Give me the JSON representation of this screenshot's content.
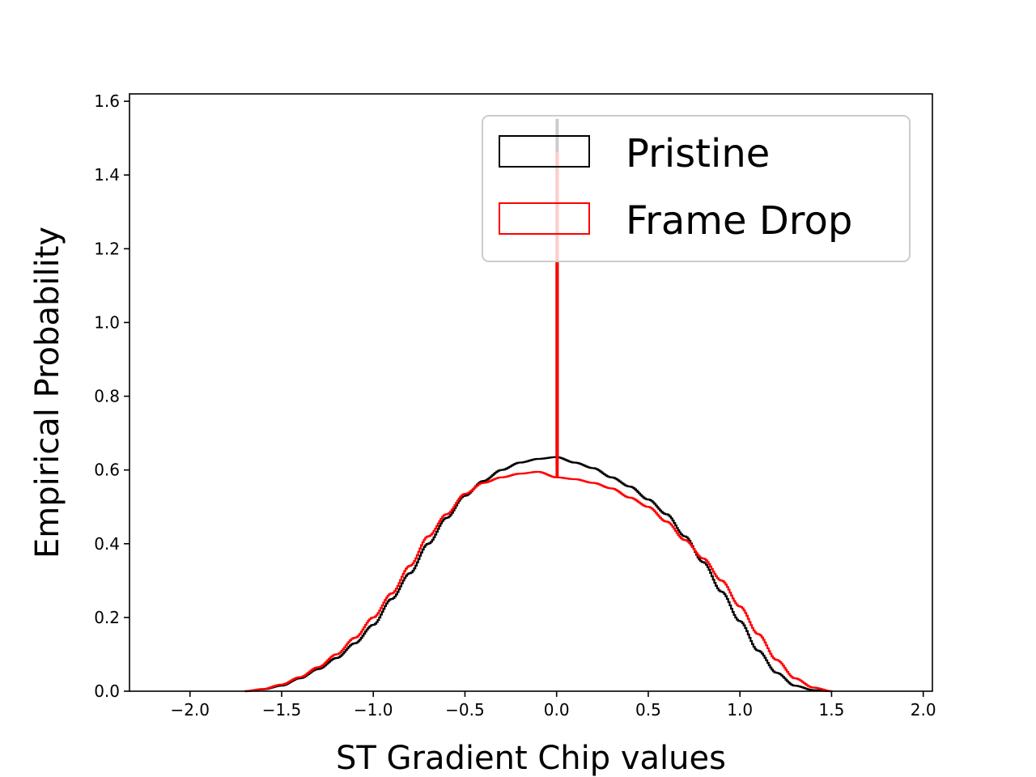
{
  "chart_data": {
    "type": "area",
    "title": "",
    "xlabel": "ST Gradient Chip values",
    "ylabel": "Empirical Probability",
    "xlim": [
      -2.33,
      2.05
    ],
    "ylim": [
      0,
      1.62
    ],
    "xticks": [
      -2.0,
      -1.5,
      -1.0,
      -0.5,
      0.0,
      0.5,
      1.0,
      1.5,
      2.0
    ],
    "xtick_labels": [
      "−2.0",
      "−1.5",
      "−1.0",
      "−0.5",
      "0.0",
      "0.5",
      "1.0",
      "1.5",
      "2.0"
    ],
    "yticks": [
      0.0,
      0.2,
      0.4,
      0.6,
      0.8,
      1.0,
      1.2,
      1.4,
      1.6
    ],
    "ytick_labels": [
      "0.0",
      "0.2",
      "0.4",
      "0.6",
      "0.8",
      "1.0",
      "1.2",
      "1.4",
      "1.6"
    ],
    "grid": false,
    "legend_position": "top-right",
    "series": [
      {
        "name": "Pristine",
        "color": "#000000",
        "style": "step",
        "points": [
          [
            -1.7,
            0.0
          ],
          [
            -1.6,
            0.005
          ],
          [
            -1.5,
            0.015
          ],
          [
            -1.4,
            0.035
          ],
          [
            -1.3,
            0.06
          ],
          [
            -1.2,
            0.09
          ],
          [
            -1.1,
            0.13
          ],
          [
            -1.0,
            0.18
          ],
          [
            -0.9,
            0.25
          ],
          [
            -0.8,
            0.32
          ],
          [
            -0.7,
            0.4
          ],
          [
            -0.6,
            0.47
          ],
          [
            -0.5,
            0.53
          ],
          [
            -0.4,
            0.57
          ],
          [
            -0.3,
            0.6
          ],
          [
            -0.2,
            0.62
          ],
          [
            -0.1,
            0.63
          ],
          [
            0.0,
            0.635
          ],
          [
            0.1,
            0.62
          ],
          [
            0.2,
            0.605
          ],
          [
            0.3,
            0.58
          ],
          [
            0.4,
            0.555
          ],
          [
            0.5,
            0.52
          ],
          [
            0.6,
            0.48
          ],
          [
            0.7,
            0.42
          ],
          [
            0.8,
            0.35
          ],
          [
            0.9,
            0.27
          ],
          [
            1.0,
            0.19
          ],
          [
            1.1,
            0.11
          ],
          [
            1.2,
            0.05
          ],
          [
            1.3,
            0.015
          ],
          [
            1.4,
            0.003
          ],
          [
            1.5,
            0.0
          ]
        ],
        "spike": {
          "x": 0.0,
          "y": 1.55
        }
      },
      {
        "name": "Frame Drop",
        "color": "#ff0000",
        "style": "step",
        "points": [
          [
            -1.7,
            0.0
          ],
          [
            -1.6,
            0.006
          ],
          [
            -1.5,
            0.018
          ],
          [
            -1.4,
            0.038
          ],
          [
            -1.3,
            0.065
          ],
          [
            -1.2,
            0.1
          ],
          [
            -1.1,
            0.145
          ],
          [
            -1.0,
            0.2
          ],
          [
            -0.9,
            0.265
          ],
          [
            -0.8,
            0.34
          ],
          [
            -0.7,
            0.42
          ],
          [
            -0.6,
            0.48
          ],
          [
            -0.5,
            0.535
          ],
          [
            -0.4,
            0.565
          ],
          [
            -0.3,
            0.58
          ],
          [
            -0.2,
            0.59
          ],
          [
            -0.1,
            0.595
          ],
          [
            0.0,
            0.58
          ],
          [
            0.1,
            0.575
          ],
          [
            0.2,
            0.565
          ],
          [
            0.3,
            0.55
          ],
          [
            0.4,
            0.525
          ],
          [
            0.5,
            0.5
          ],
          [
            0.6,
            0.46
          ],
          [
            0.7,
            0.41
          ],
          [
            0.8,
            0.36
          ],
          [
            0.9,
            0.3
          ],
          [
            1.0,
            0.23
          ],
          [
            1.1,
            0.155
          ],
          [
            1.2,
            0.085
          ],
          [
            1.3,
            0.035
          ],
          [
            1.4,
            0.01
          ],
          [
            1.5,
            0.0
          ]
        ],
        "spike": {
          "x": 0.0,
          "y": 1.46
        }
      }
    ]
  }
}
